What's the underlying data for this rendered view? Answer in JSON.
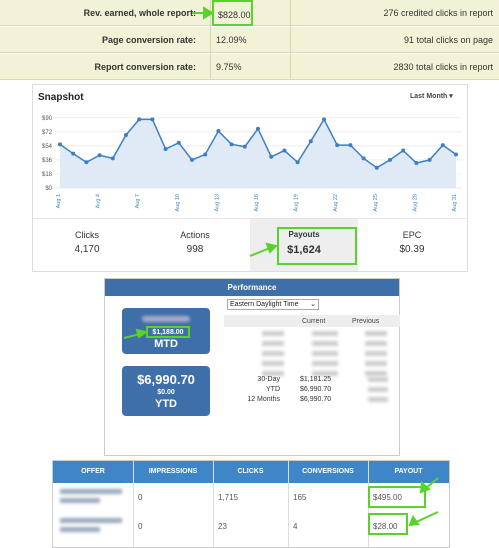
{
  "report_table": {
    "rows": [
      [
        "Rev. earned, whole report:",
        "$828.00",
        "276 credited clicks in report"
      ],
      [
        "Page conversion rate:",
        "12.09%",
        "91 total clicks on page"
      ],
      [
        "Report conversion rate:",
        "9.75%",
        "2830 total clicks in report"
      ]
    ]
  },
  "chart_data": {
    "type": "line",
    "title": "Snapshot",
    "range_selector": "Last Month",
    "categories": [
      "Aug 1",
      null,
      null,
      "Aug 4",
      null,
      null,
      "Aug 7",
      null,
      null,
      "Aug 10",
      null,
      null,
      "Aug 13",
      null,
      null,
      "Aug 16",
      null,
      null,
      "Aug 19",
      null,
      null,
      "Aug 22",
      null,
      null,
      "Aug 25",
      null,
      null,
      "Aug 28",
      null,
      null,
      "Aug 31"
    ],
    "values": [
      56,
      44,
      33,
      42,
      38,
      68,
      88,
      88,
      50,
      58,
      36,
      43,
      73,
      56,
      53,
      76,
      40,
      48,
      33,
      60,
      88,
      55,
      55,
      38,
      26,
      36,
      48,
      32,
      36,
      55,
      43
    ],
    "color": "#3d7fc1",
    "ylim": [
      0,
      100
    ],
    "yticks": [
      {
        "value": 0,
        "label": "$0"
      },
      {
        "value": 18,
        "label": "$18"
      },
      {
        "value": 36,
        "label": "$36"
      },
      {
        "value": 54,
        "label": "$54"
      },
      {
        "value": 72,
        "label": "$72"
      },
      {
        "value": 90,
        "label": "$90"
      }
    ],
    "grid": true
  },
  "snapshot_stats": [
    {
      "label": "Clicks",
      "value": "4,170"
    },
    {
      "label": "Actions",
      "value": "998"
    },
    {
      "label": "Payouts",
      "value": "$1,624"
    },
    {
      "label": "EPC",
      "value": "$0.39"
    }
  ],
  "performance": {
    "title": "Performance",
    "timezone": "Eastern Daylight Time",
    "mtd": {
      "amount": "$1,188.00",
      "label": "MTD"
    },
    "ytd": {
      "amount": "$6,990.70",
      "sub": "$0.00",
      "label": "YTD"
    },
    "columns": [
      "Current",
      "Previous"
    ],
    "rows": [
      [
        "30-Day",
        "$1,181.25"
      ],
      [
        "YTD",
        "$6,990.70"
      ],
      [
        "12 Months",
        "$6,990.70"
      ]
    ]
  },
  "offers": {
    "columns": [
      "OFFER",
      "IMPRESSIONS",
      "CLICKS",
      "CONVERSIONS",
      "PAYOUT"
    ],
    "rows": [
      [
        "0",
        "1,715",
        "165",
        "$495.00"
      ],
      [
        "0",
        "23",
        "4",
        "$28.00"
      ]
    ]
  }
}
